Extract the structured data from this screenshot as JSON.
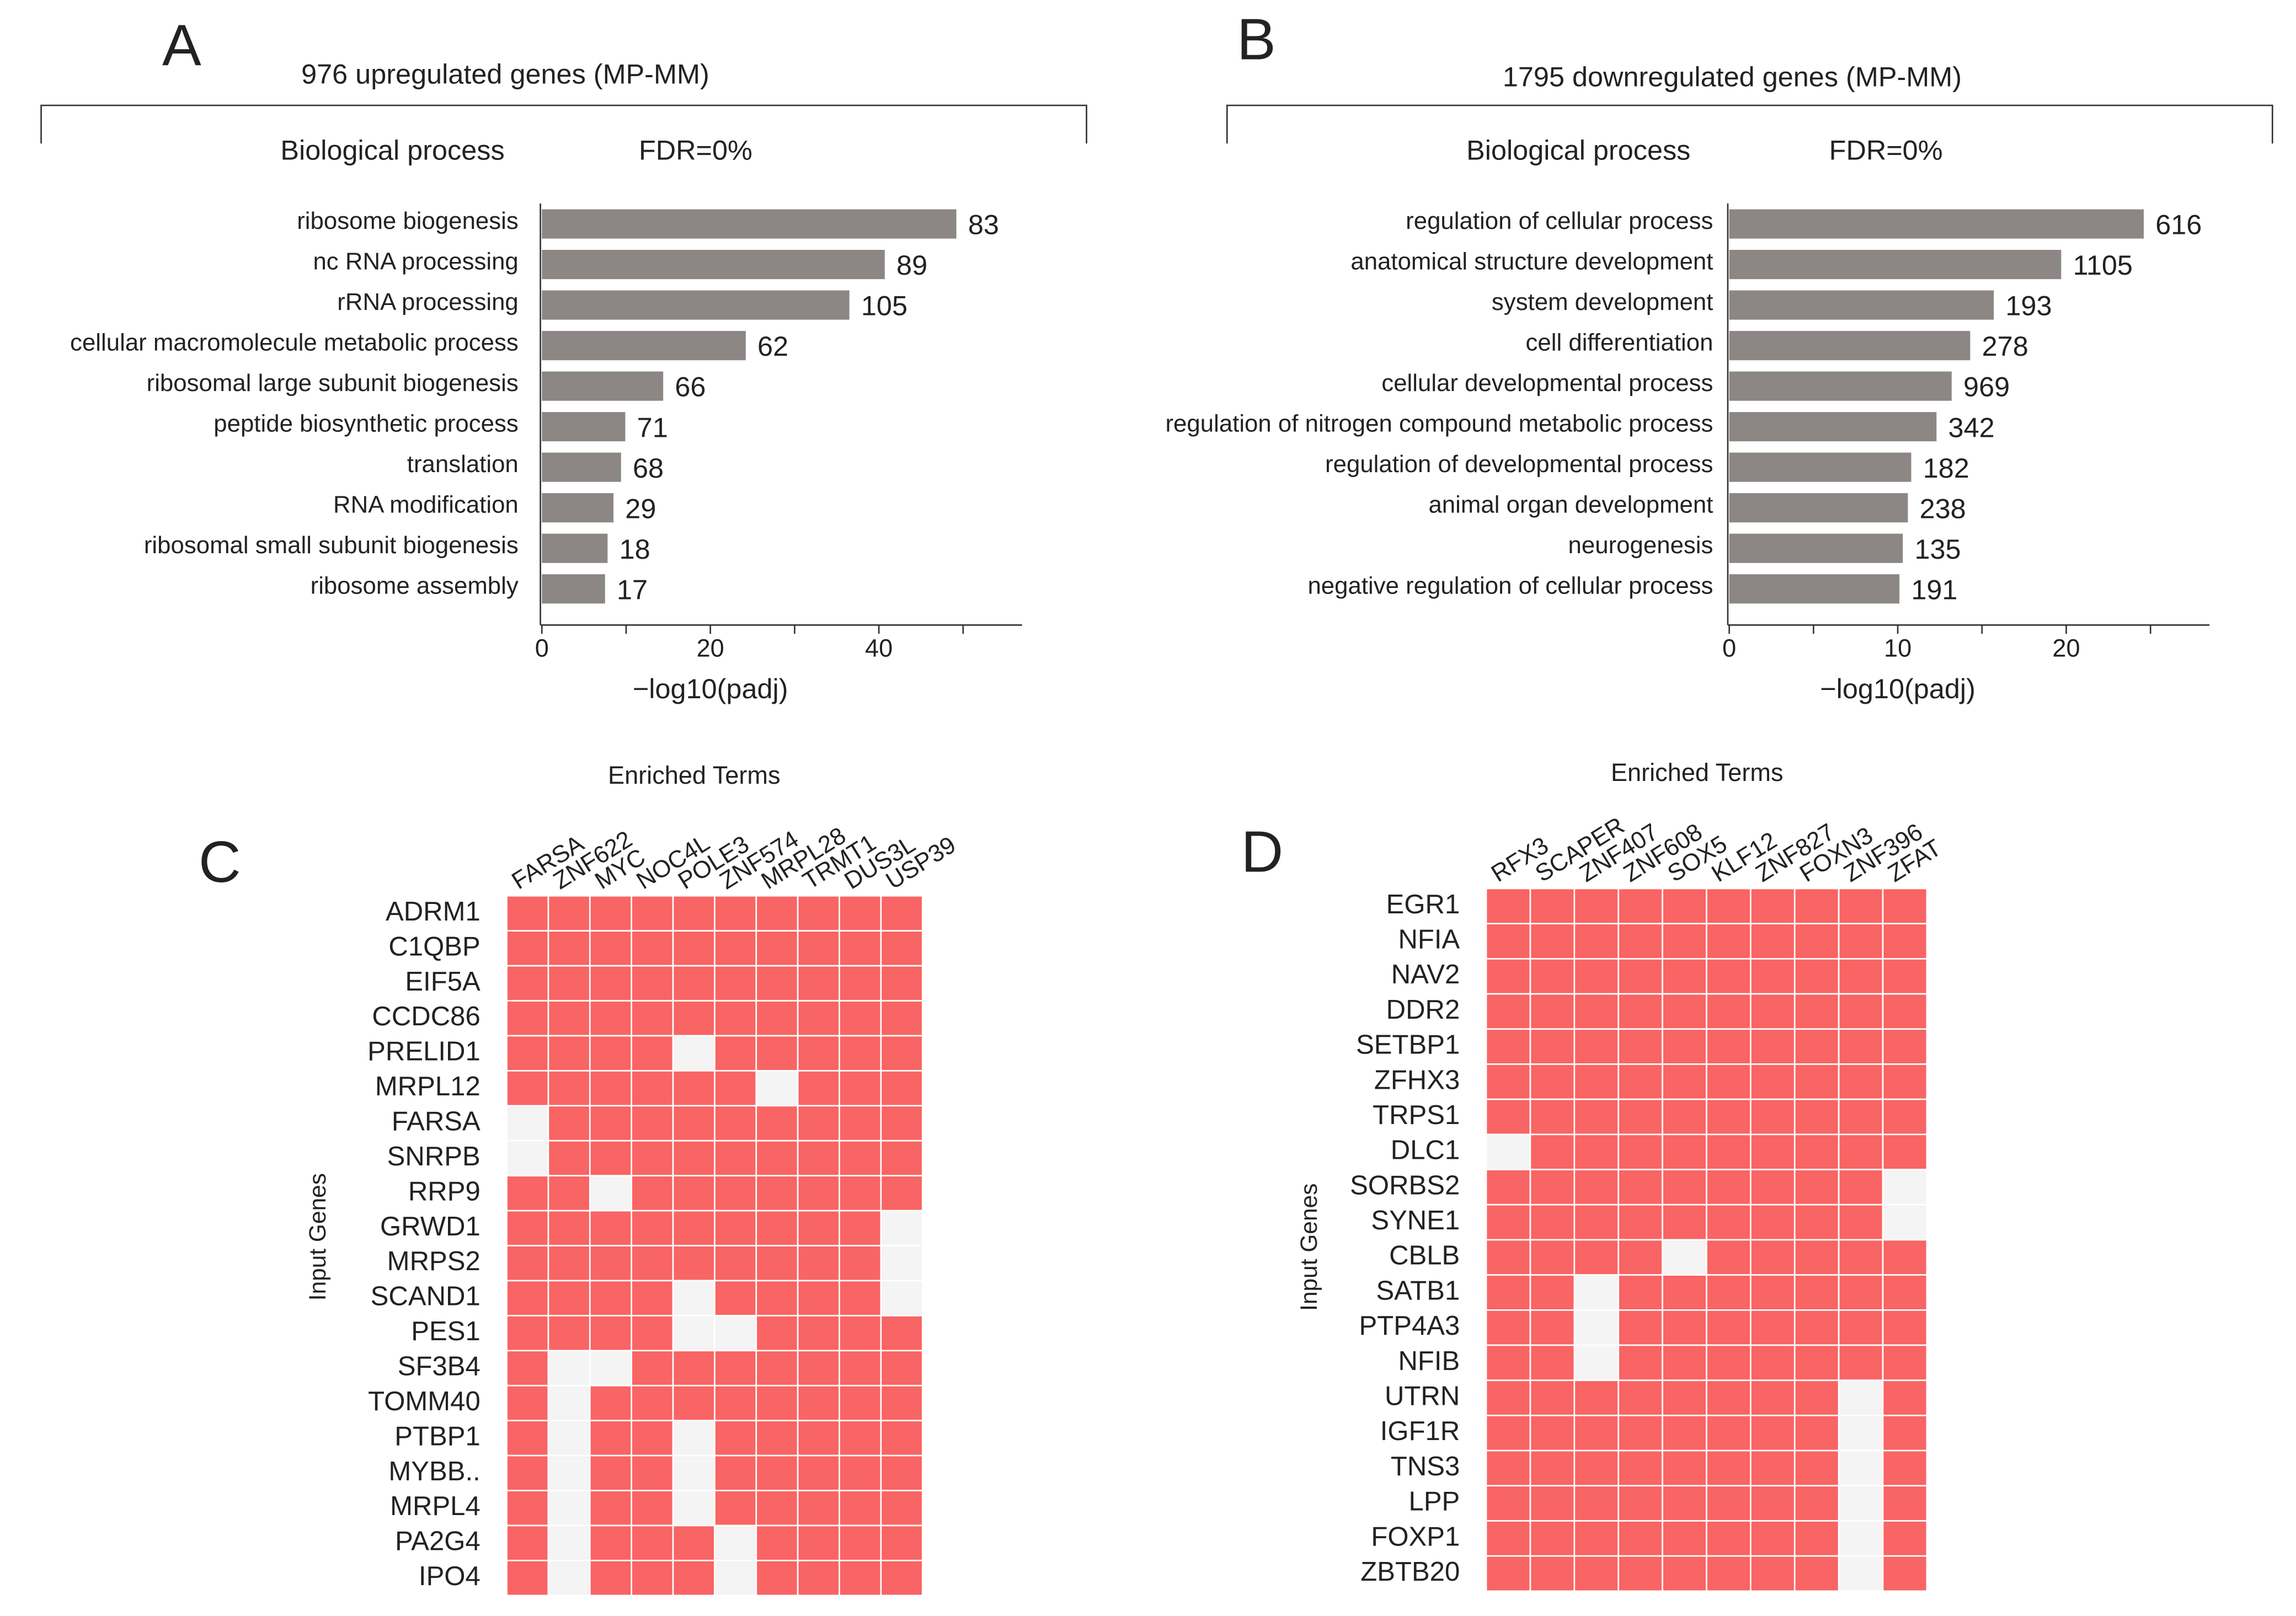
{
  "chart_data": [
    {
      "type": "hbar",
      "panel": "A",
      "subtitle": "976 upregulated genes (MP-MM)",
      "header_left": "Biological process",
      "header_right": "FDR=0%",
      "categories": [
        "ribosome biogenesis",
        "nc RNA processing",
        "rRNA processing",
        "cellular macromolecule metabolic process",
        "ribosomal large subunit biogenesis",
        "peptide biosynthetic process",
        "translation",
        "RNA modification",
        "ribosomal small subunit biogenesis",
        "ribosome assembly"
      ],
      "values": [
        49.2,
        40.7,
        36.5,
        24.2,
        14.4,
        9.9,
        9.4,
        8.5,
        7.8,
        7.5
      ],
      "gene_counts": [
        83,
        89,
        105,
        62,
        66,
        71,
        68,
        29,
        18,
        17
      ],
      "color": "#8c8784",
      "xlabel": "−log10(padj)",
      "xlim": [
        0,
        57
      ],
      "xticks": [
        0,
        20,
        40
      ],
      "minor_xticks": [
        10,
        30,
        50
      ]
    },
    {
      "type": "hbar",
      "panel": "B",
      "subtitle": "1795 downregulated genes (MP-MM)",
      "header_left": "Biological process",
      "header_right": "FDR=0%",
      "categories": [
        "regulation of cellular process",
        "anatomical structure development",
        "system development",
        "cell differentiation",
        "cellular developmental process",
        "regulation of nitrogen compound metabolic process",
        "regulation of developmental process",
        "animal organ development",
        "neurogenesis",
        "negative regulation of cellular process"
      ],
      "values": [
        24.6,
        19.7,
        15.7,
        14.3,
        13.2,
        12.3,
        10.8,
        10.6,
        10.3,
        10.1
      ],
      "gene_counts": [
        616,
        1105,
        193,
        278,
        969,
        342,
        182,
        238,
        135,
        191
      ],
      "color": "#8c8784",
      "xlabel": "−log10(padj)",
      "xlim": [
        0,
        28.5
      ],
      "xticks": [
        0,
        10,
        20
      ],
      "minor_xticks": [
        5,
        15,
        25
      ]
    },
    {
      "type": "heatmap",
      "panel": "C",
      "title": "Enriched Terms",
      "ylabel": "Input Genes",
      "color": "#f96464",
      "empty_color": "#f4f4f4",
      "columns": [
        "FARSA",
        "ZNF622",
        "MYC",
        "NOC4L",
        "POLE3",
        "ZNF574",
        "MRPL28",
        "TRMT1",
        "DUS3L",
        "USP39"
      ],
      "rows": [
        "ADRM1",
        "C1QBP",
        "EIF5A",
        "CCDC86",
        "PRELID1",
        "MRPL12",
        "FARSA",
        "SNRPB",
        "RRP9",
        "GRWD1",
        "MRPS2",
        "SCAND1",
        "PES1",
        "SF3B4",
        "TOMM40",
        "PTBP1",
        "MYBB..",
        "MRPL4",
        "PA2G4",
        "IPO4"
      ],
      "values": [
        [
          1,
          1,
          1,
          1,
          1,
          1,
          1,
          1,
          1,
          1
        ],
        [
          1,
          1,
          1,
          1,
          1,
          1,
          1,
          1,
          1,
          1
        ],
        [
          1,
          1,
          1,
          1,
          1,
          1,
          1,
          1,
          1,
          1
        ],
        [
          1,
          1,
          1,
          1,
          1,
          1,
          1,
          1,
          1,
          1
        ],
        [
          1,
          1,
          1,
          1,
          0,
          1,
          1,
          1,
          1,
          1
        ],
        [
          1,
          1,
          1,
          1,
          1,
          1,
          0,
          1,
          1,
          1
        ],
        [
          0,
          1,
          1,
          1,
          1,
          1,
          1,
          1,
          1,
          1
        ],
        [
          0,
          1,
          1,
          1,
          1,
          1,
          1,
          1,
          1,
          1
        ],
        [
          1,
          1,
          0,
          1,
          1,
          1,
          1,
          1,
          1,
          1
        ],
        [
          1,
          1,
          1,
          1,
          1,
          1,
          1,
          1,
          1,
          0
        ],
        [
          1,
          1,
          1,
          1,
          1,
          1,
          1,
          1,
          1,
          0
        ],
        [
          1,
          1,
          1,
          1,
          0,
          1,
          1,
          1,
          1,
          0
        ],
        [
          1,
          1,
          1,
          1,
          0,
          0,
          1,
          1,
          1,
          1
        ],
        [
          1,
          0,
          0,
          1,
          1,
          1,
          1,
          1,
          1,
          1
        ],
        [
          1,
          0,
          1,
          1,
          1,
          1,
          1,
          1,
          1,
          1
        ],
        [
          1,
          0,
          1,
          1,
          0,
          1,
          1,
          1,
          1,
          1
        ],
        [
          1,
          0,
          1,
          1,
          0,
          1,
          1,
          1,
          1,
          1
        ],
        [
          1,
          0,
          1,
          1,
          0,
          1,
          1,
          1,
          1,
          1
        ],
        [
          1,
          0,
          1,
          1,
          1,
          0,
          1,
          1,
          1,
          1
        ],
        [
          1,
          0,
          1,
          1,
          1,
          0,
          1,
          1,
          1,
          1
        ]
      ]
    },
    {
      "type": "heatmap",
      "panel": "D",
      "title": "Enriched Terms",
      "ylabel": "Input Genes",
      "color": "#f96464",
      "empty_color": "#f4f4f4",
      "columns": [
        "RFX3",
        "SCAPER",
        "ZNF407",
        "ZNF608",
        "SOX5",
        "KLF12",
        "ZNF827",
        "FOXN3",
        "ZNF396",
        "ZFAT"
      ],
      "rows": [
        "EGR1",
        "NFIA",
        "NAV2",
        "DDR2",
        "SETBP1",
        "ZFHX3",
        "TRPS1",
        "DLC1",
        "SORBS2",
        "SYNE1",
        "CBLB",
        "SATB1",
        "PTP4A3",
        "NFIB",
        "UTRN",
        "IGF1R",
        "TNS3",
        "LPP",
        "FOXP1",
        "ZBTB20"
      ],
      "values": [
        [
          1,
          1,
          1,
          1,
          1,
          1,
          1,
          1,
          1,
          1
        ],
        [
          1,
          1,
          1,
          1,
          1,
          1,
          1,
          1,
          1,
          1
        ],
        [
          1,
          1,
          1,
          1,
          1,
          1,
          1,
          1,
          1,
          1
        ],
        [
          1,
          1,
          1,
          1,
          1,
          1,
          1,
          1,
          1,
          1
        ],
        [
          1,
          1,
          1,
          1,
          1,
          1,
          1,
          1,
          1,
          1
        ],
        [
          1,
          1,
          1,
          1,
          1,
          1,
          1,
          1,
          1,
          1
        ],
        [
          1,
          1,
          1,
          1,
          1,
          1,
          1,
          1,
          1,
          1
        ],
        [
          0,
          1,
          1,
          1,
          1,
          1,
          1,
          1,
          1,
          1
        ],
        [
          1,
          1,
          1,
          1,
          1,
          1,
          1,
          1,
          1,
          0
        ],
        [
          1,
          1,
          1,
          1,
          1,
          1,
          1,
          1,
          1,
          0
        ],
        [
          1,
          1,
          1,
          1,
          0,
          1,
          1,
          1,
          1,
          1
        ],
        [
          1,
          1,
          0,
          1,
          1,
          1,
          1,
          1,
          1,
          1
        ],
        [
          1,
          1,
          0,
          1,
          1,
          1,
          1,
          1,
          1,
          1
        ],
        [
          1,
          1,
          0,
          1,
          1,
          1,
          1,
          1,
          1,
          1
        ],
        [
          1,
          1,
          1,
          1,
          1,
          1,
          1,
          1,
          0,
          1
        ],
        [
          1,
          1,
          1,
          1,
          1,
          1,
          1,
          1,
          0,
          1
        ],
        [
          1,
          1,
          1,
          1,
          1,
          1,
          1,
          1,
          0,
          1
        ],
        [
          1,
          1,
          1,
          1,
          1,
          1,
          1,
          1,
          0,
          1
        ],
        [
          1,
          1,
          1,
          1,
          1,
          1,
          1,
          1,
          0,
          1
        ],
        [
          1,
          1,
          1,
          1,
          1,
          1,
          1,
          1,
          0,
          1
        ]
      ]
    }
  ]
}
